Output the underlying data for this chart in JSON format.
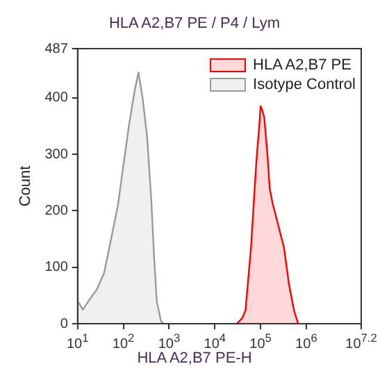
{
  "chart_data": {
    "type": "area",
    "title": "HLA A2,B7 PE / P4 / Lym",
    "xlabel": "HLA A2,B7 PE-H",
    "ylabel": "Count",
    "log": "x",
    "grid": false,
    "legend": "top right",
    "xlim": [
      10,
      15848932
    ],
    "xticks": [
      {
        "value": 10,
        "label": "10$^{1}$"
      },
      {
        "value": 100,
        "label": "10$^{2}$"
      },
      {
        "value": 1000,
        "label": "10$^{3}$"
      },
      {
        "value": 10000,
        "label": "10$^{4}$"
      },
      {
        "value": 100000,
        "label": "10$^{5}$"
      },
      {
        "value": 1000000,
        "label": "10$^{6}$"
      },
      {
        "value": 15848932,
        "label": "10$^{7.2}$"
      }
    ],
    "ylim": [
      0,
      487
    ],
    "yticks": [
      0,
      100,
      200,
      300,
      400,
      487
    ],
    "series": [
      {
        "name": "HLA A2,B7 PE",
        "color": "#ff0000",
        "x": [
          30200,
          39800,
          46800,
          61700,
          70800,
          81300,
          93300,
          100000,
          107000,
          120000,
          141000,
          158000,
          182000,
          251000,
          324000,
          417000,
          537000,
          661000
        ],
        "values": [
          0,
          10,
          24,
          135,
          214,
          290,
          350,
          385,
          380,
          365,
          300,
          240,
          214,
          170,
          135,
          70,
          24,
          0
        ]
      },
      {
        "name": "Isotype Control",
        "color": "#999999",
        "x": [
          10,
          13,
          19,
          26,
          38,
          54,
          76,
          100,
          132,
          174,
          214,
          263,
          331,
          407,
          468,
          537,
          661,
          759
        ],
        "values": [
          40,
          25,
          45,
          60,
          90,
          150,
          210,
          280,
          350,
          410,
          445,
          400,
          330,
          220,
          120,
          40,
          5,
          0
        ]
      }
    ]
  }
}
